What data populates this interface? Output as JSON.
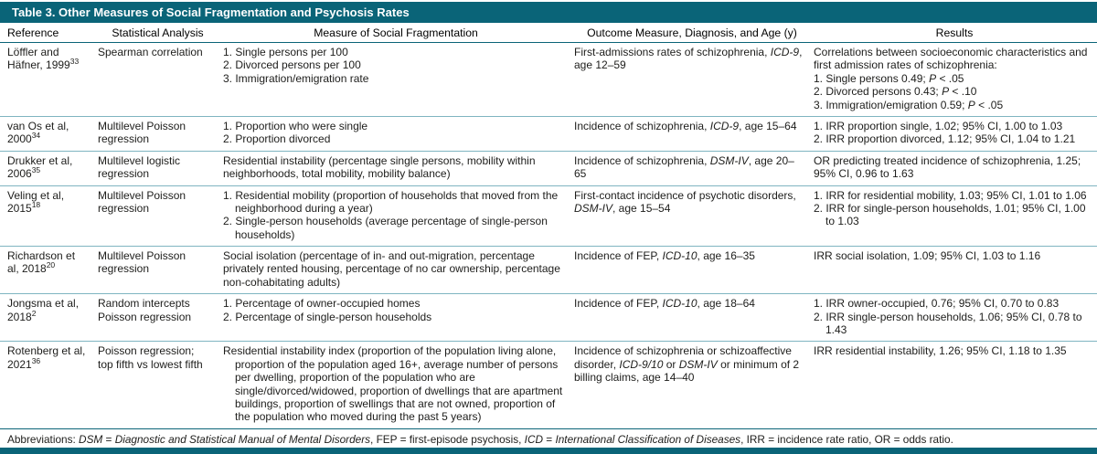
{
  "title": "Table 3. Other Measures of Social Fragmentation and Psychosis Rates",
  "colors": {
    "teal": "#0a6478",
    "rowline": "#7fb5c1",
    "text": "#1d1d1b"
  },
  "table": {
    "columns": [
      "Reference",
      "Statistical Analysis",
      "Measure of Social Fragmentation",
      "Outcome Measure, Diagnosis, and Age (y)",
      "Results"
    ],
    "fields": [
      "reference",
      "analysis",
      "measure",
      "outcome",
      "results"
    ],
    "rows": [
      {
        "reference": [
          "Löffler and Häfner, 1999<sup>33</sup>"
        ],
        "analysis": [
          "Spearman correlation"
        ],
        "measure": [
          "1. Single persons per 100",
          "2. Divorced persons per 100",
          "3. Immigration/emigration rate"
        ],
        "outcome": [
          "First-admissions rates of schizophrenia, <i>ICD-9</i>, age 12–59"
        ],
        "results": [
          "Correlations between socioeconomic characteristics and first admission rates of schizophrenia:",
          "1. Single persons 0.49; <i>P</i> &lt; .05",
          "2. Divorced persons 0.43; <i>P</i> &lt; .10",
          "3. Immigration/emigration 0.59; <i>P</i> &lt; .05"
        ]
      },
      {
        "reference": [
          "van Os et al, 2000<sup>34</sup>"
        ],
        "analysis": [
          "Multilevel Poisson regression"
        ],
        "measure": [
          "1. Proportion who were single",
          "2. Proportion divorced"
        ],
        "outcome": [
          "Incidence of schizophrenia, <i>ICD-9</i>, age 15–64"
        ],
        "results": [
          "1. IRR proportion single, 1.02; 95% CI, 1.00 to 1.03",
          "2. IRR proportion divorced, 1.12; 95% CI, 1.04 to 1.21"
        ]
      },
      {
        "reference": [
          "Drukker et al, 2006<sup>35</sup>"
        ],
        "analysis": [
          "Multilevel logistic regression"
        ],
        "measure": [
          "Residential instability (percentage single persons, mobility within neighborhoods, total mobility, mobility balance)"
        ],
        "outcome": [
          "Incidence of schizophrenia, <i>DSM-IV</i>, age 20–65"
        ],
        "results": [
          "OR predicting treated incidence of schizophrenia, 1.25; 95% CI, 0.96 to 1.63"
        ]
      },
      {
        "reference": [
          "Veling et al, 2015<sup>18</sup>"
        ],
        "analysis": [
          "Multilevel Poisson regression"
        ],
        "measure": [
          "1. Residential mobility (proportion of households that moved from the neighborhood during a year)",
          "2. Single-person households (average percentage of single-person households)"
        ],
        "outcome": [
          "First-contact incidence of psychotic disorders, <i>DSM-IV</i>, age 15–54"
        ],
        "results": [
          "1. IRR for residential mobility, 1.03; 95% CI, 1.01 to 1.06",
          "2. IRR for single-person households, 1.01; 95% CI, 1.00 to 1.03"
        ]
      },
      {
        "reference": [
          "Richardson et al, 2018<sup>20</sup>"
        ],
        "analysis": [
          "Multilevel Poisson regression"
        ],
        "measure": [
          "Social isolation (percentage of in- and out-migration, percentage privately rented housing, percentage of no car ownership, percentage non-cohabitating adults)"
        ],
        "outcome": [
          "Incidence of FEP, <i>ICD-10</i>, age 16–35"
        ],
        "results": [
          "IRR social isolation, 1.09; 95% CI, 1.03 to 1.16"
        ]
      },
      {
        "reference": [
          "Jongsma et al, 2018<sup>2</sup>"
        ],
        "analysis": [
          "Random intercepts Poisson regression"
        ],
        "measure": [
          "1. Percentage of owner-occupied homes",
          "2. Percentage of single-person households"
        ],
        "outcome": [
          "Incidence of FEP, <i>ICD-10</i>, age 18–64"
        ],
        "results": [
          "1. IRR owner-occupied, 0.76; 95% CI, 0.70 to 0.83",
          "2. IRR single-person households, 1.06; 95% CI, 0.78 to 1.43"
        ]
      },
      {
        "reference": [
          "Rotenberg et al, 2021<sup>36</sup>"
        ],
        "analysis": [
          "Poisson regression; top fifth vs lowest fifth"
        ],
        "measure": [
          {
            "html": "Residential instability index (proportion of the population living alone, proportion of the population aged 16+, average number of persons per dwelling, proportion of the population who are single/divorced/widowed, proportion of dwellings that are apartment buildings, proportion of swellings that are not owned, proportion of the population who moved during the past 5 years)",
            "hang": true
          }
        ],
        "outcome": [
          "Incidence of schizophrenia or schizoaffective disorder, <i>ICD-9/10</i> or <i>DSM-IV</i> or minimum of 2 billing claims, age 14–40"
        ],
        "results": [
          "IRR residential instability, 1.26; 95% CI, 1.18 to 1.35"
        ]
      }
    ]
  },
  "footnote": "Abbreviations: <i>DSM</i> = <i>Diagnostic and Statistical Manual of Mental Disorders</i>, FEP = first-episode psychosis, <i>ICD</i> = <i>International Classification of Diseases</i>, IRR = incidence rate ratio, OR = odds ratio."
}
